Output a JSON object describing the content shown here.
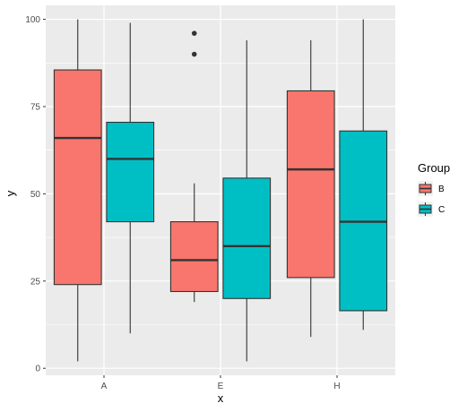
{
  "chart_data": {
    "type": "boxplot",
    "title": "",
    "xlabel": "x",
    "ylabel": "y",
    "ylim": [
      -2,
      104
    ],
    "yticks": [
      0,
      25,
      50,
      75,
      100
    ],
    "categories": [
      "A",
      "E",
      "H"
    ],
    "legend": {
      "title": "Group",
      "position": "right"
    },
    "grid": true,
    "series": [
      {
        "name": "B",
        "color": "#F8766D",
        "boxes": [
          {
            "category": "A",
            "min": 2,
            "q1": 24,
            "median": 66,
            "q3": 85.5,
            "max": 100,
            "outliers": []
          },
          {
            "category": "E",
            "min": 19,
            "q1": 22,
            "median": 31,
            "q3": 42,
            "max": 53,
            "outliers": [
              90,
              96
            ]
          },
          {
            "category": "H",
            "min": 9,
            "q1": 26,
            "median": 57,
            "q3": 79.5,
            "max": 94,
            "outliers": []
          }
        ]
      },
      {
        "name": "C",
        "color": "#00BFC4",
        "boxes": [
          {
            "category": "A",
            "min": 10,
            "q1": 42,
            "median": 60,
            "q3": 70.5,
            "max": 99,
            "outliers": []
          },
          {
            "category": "E",
            "min": 2,
            "q1": 20,
            "median": 35,
            "q3": 54.5,
            "max": 94,
            "outliers": []
          },
          {
            "category": "H",
            "min": 11,
            "q1": 16.5,
            "median": 42,
            "q3": 68,
            "max": 100,
            "outliers": []
          }
        ]
      }
    ]
  }
}
